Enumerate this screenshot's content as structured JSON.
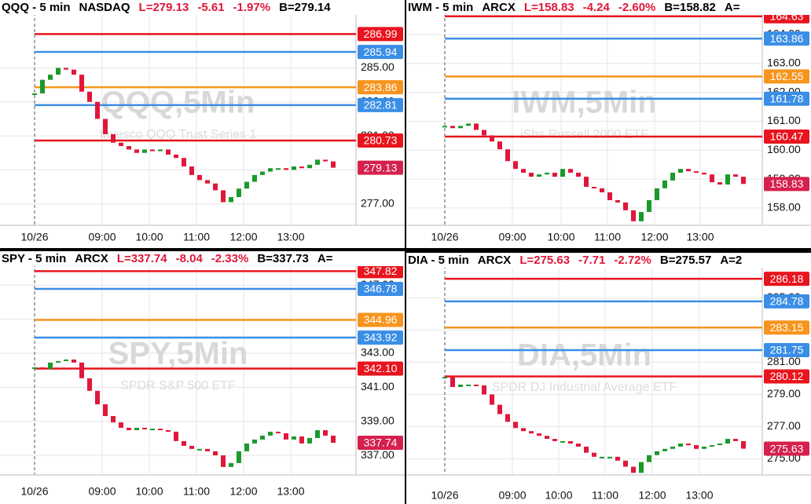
{
  "chart_data": [
    {
      "type": "candlestick",
      "title": "QQQ - 5 min",
      "exchange": "NASDAQ",
      "last": "L=279.13",
      "change": "-5.61",
      "change_pct": "-1.97%",
      "bid": "B=279.14",
      "watermark": "QQQ,5Min",
      "description": "Invesco QQQ Trust Series 1",
      "ylim": [
        275.74,
        288.07
      ],
      "yticks": [
        {
          "value": 277,
          "label": "277.00"
        },
        {
          "value": 279,
          "label": "279.00"
        },
        {
          "value": 281,
          "label": "281.00"
        },
        {
          "value": 283,
          "label": "283.00"
        },
        {
          "value": 285,
          "label": "285.00"
        }
      ],
      "xlim": [
        0,
        40
      ],
      "xticks": [
        {
          "value": 0,
          "label": "10/26"
        },
        {
          "value": 8.6,
          "label": "09:00"
        },
        {
          "value": 14.6,
          "label": "10:00"
        },
        {
          "value": 20.6,
          "label": "11:00"
        },
        {
          "value": 26.6,
          "label": "12:00"
        },
        {
          "value": 32.6,
          "label": "13:00"
        }
      ],
      "levels": [
        {
          "value": 286.99,
          "color": "#e8141e"
        },
        {
          "value": 285.94,
          "color": "#3a8ee6"
        },
        {
          "value": 283.86,
          "color": "#f7941d"
        },
        {
          "value": 282.81,
          "color": "#3a8ee6"
        },
        {
          "value": 280.73,
          "color": "#e8141e"
        }
      ],
      "last_price": 279.13,
      "last_color": "#d6204e",
      "up_color": "#1a9a2a",
      "down_color": "#e0173a",
      "closes": [
        283.5,
        284.3,
        284.6,
        285.0,
        284.9,
        284.6,
        283.6,
        283.0,
        282.0,
        281.1,
        280.6,
        280.4,
        280.2,
        280.0,
        280.2,
        280.1,
        280.2,
        279.9,
        279.7,
        279.2,
        278.7,
        278.4,
        278.2,
        277.8,
        277.1,
        277.4,
        277.9,
        278.3,
        278.7,
        278.9,
        279.1,
        279.1,
        279.0,
        279.2,
        279.1,
        279.3,
        279.6,
        279.5,
        279.13
      ]
    },
    {
      "type": "candlestick",
      "title": "IWM - 5 min",
      "exchange": "ARCX",
      "last": "L=158.83",
      "change": "-4.24",
      "change_pct": "-2.60%",
      "bid": "B=158.82",
      "ask": "A=",
      "watermark": "IWM,5Min",
      "description": "iShs Russell 2000 ETF",
      "ylim": [
        157.4,
        164.65
      ],
      "yticks": [
        {
          "value": 158,
          "label": "158.00"
        },
        {
          "value": 159,
          "label": "159.00"
        },
        {
          "value": 160,
          "label": "160.00"
        },
        {
          "value": 161,
          "label": "161.00"
        },
        {
          "value": 162,
          "label": "162.00"
        },
        {
          "value": 163,
          "label": "163.00"
        },
        {
          "value": 164,
          "label": "164.00"
        }
      ],
      "xlim": [
        0,
        40
      ],
      "xticks": [
        {
          "value": 0,
          "label": "10/26"
        },
        {
          "value": 8.6,
          "label": "09:00"
        },
        {
          "value": 14.8,
          "label": "10:00"
        },
        {
          "value": 20.7,
          "label": "11:00"
        },
        {
          "value": 26.7,
          "label": "12:00"
        },
        {
          "value": 32.5,
          "label": "13:00"
        }
      ],
      "levels": [
        {
          "value": 164.63,
          "color": "#e8141e"
        },
        {
          "value": 163.86,
          "color": "#3a8ee6"
        },
        {
          "value": 162.55,
          "color": "#f7941d"
        },
        {
          "value": 161.78,
          "color": "#3a8ee6"
        },
        {
          "value": 160.47,
          "color": "#e8141e"
        }
      ],
      "last_price": 158.83,
      "last_color": "#d6204e",
      "up_color": "#1a9a2a",
      "down_color": "#e0173a",
      "closes": [
        160.84,
        160.76,
        160.84,
        160.92,
        160.7,
        160.51,
        160.3,
        160.03,
        159.62,
        159.35,
        159.22,
        159.08,
        159.16,
        159.22,
        159.08,
        159.35,
        159.22,
        159.08,
        158.73,
        158.68,
        158.54,
        158.27,
        158.19,
        157.92,
        157.54,
        157.86,
        158.27,
        158.68,
        158.95,
        159.22,
        159.35,
        159.27,
        159.22,
        159.16,
        158.89,
        158.81,
        159.16,
        159.08,
        158.83
      ]
    },
    {
      "type": "candlestick",
      "title": "SPY - 5 min",
      "exchange": "ARCX",
      "last": "L=337.74",
      "change": "-8.04",
      "change_pct": "-2.33%",
      "bid": "B=337.73",
      "ask": "A=",
      "watermark": "SPY,5Min",
      "description": "SPDR S&P 500 ETF",
      "ylim": [
        335.85,
        348.07
      ],
      "yticks": [
        {
          "value": 337,
          "label": "337.00"
        },
        {
          "value": 339,
          "label": "339.00"
        },
        {
          "value": 341,
          "label": "341.00"
        },
        {
          "value": 343,
          "label": "343.00"
        },
        {
          "value": 345,
          "label": "345.00"
        },
        {
          "value": 347,
          "label": "347.00"
        }
      ],
      "xlim": [
        0,
        40
      ],
      "xticks": [
        {
          "value": 0,
          "label": "10/26"
        },
        {
          "value": 8.6,
          "label": "09:00"
        },
        {
          "value": 14.6,
          "label": "10:00"
        },
        {
          "value": 20.6,
          "label": "11:00"
        },
        {
          "value": 26.6,
          "label": "12:00"
        },
        {
          "value": 32.6,
          "label": "13:00"
        }
      ],
      "levels": [
        {
          "value": 347.82,
          "color": "#e8141e"
        },
        {
          "value": 346.78,
          "color": "#3a8ee6"
        },
        {
          "value": 344.96,
          "color": "#f7941d"
        },
        {
          "value": 343.92,
          "color": "#3a8ee6"
        },
        {
          "value": 342.1,
          "label": "342.10",
          "color": "#e8141e"
        }
      ],
      "last_price": 337.74,
      "last_color": "#d6204e",
      "up_color": "#1a9a2a",
      "down_color": "#e0173a",
      "closes": [
        342.17,
        342.08,
        342.45,
        342.54,
        342.63,
        342.45,
        341.53,
        340.79,
        340.0,
        339.31,
        338.94,
        338.62,
        338.48,
        338.62,
        338.57,
        338.57,
        338.48,
        338.39,
        337.84,
        337.56,
        337.38,
        337.38,
        337.24,
        337.0,
        336.32,
        336.55,
        337.24,
        337.7,
        337.93,
        338.16,
        338.39,
        338.3,
        337.93,
        338.11,
        337.7,
        338.02,
        338.48,
        338.16,
        337.74
      ]
    },
    {
      "type": "candlestick",
      "title": "DIA - 5 min",
      "exchange": "ARCX",
      "last": "L=275.63",
      "change": "-7.71",
      "change_pct": "-2.72%",
      "bid": "B=275.57",
      "ask": "A=2",
      "watermark": "DIA,5Min",
      "description": "SPDR DJ Industrial Average ETF",
      "ylim": [
        274.0,
        286.82
      ],
      "yticks": [
        {
          "value": 275,
          "label": "275.00"
        },
        {
          "value": 277,
          "label": "277.00"
        },
        {
          "value": 279,
          "label": "279.00"
        },
        {
          "value": 281,
          "label": "281.00"
        },
        {
          "value": 283,
          "label": "283.00"
        },
        {
          "value": 285,
          "label": "285.00"
        }
      ],
      "xlim": [
        0,
        40
      ],
      "xticks": [
        {
          "value": 0,
          "label": "10/26"
        },
        {
          "value": 8.6,
          "label": "09:00"
        },
        {
          "value": 14.5,
          "label": "10:00"
        },
        {
          "value": 20.4,
          "label": "11:00"
        },
        {
          "value": 26.4,
          "label": "12:00"
        },
        {
          "value": 32.4,
          "label": "13:00"
        }
      ],
      "levels": [
        {
          "value": 286.18,
          "color": "#e8141e"
        },
        {
          "value": 284.78,
          "color": "#3a8ee6"
        },
        {
          "value": 283.15,
          "color": "#f7941d"
        },
        {
          "value": 281.75,
          "color": "#3a8ee6"
        },
        {
          "value": 280.12,
          "color": "#e8141e"
        }
      ],
      "last_price": 275.63,
      "last_color": "#d6204e",
      "up_color": "#1a9a2a",
      "down_color": "#e0173a",
      "closes": [
        280.09,
        279.46,
        279.61,
        279.61,
        279.56,
        279.0,
        278.36,
        277.78,
        277.3,
        276.91,
        276.72,
        276.58,
        276.43,
        276.24,
        276.1,
        276.1,
        275.95,
        275.76,
        275.38,
        275.13,
        275.13,
        275.13,
        274.89,
        274.51,
        274.13,
        274.8,
        275.23,
        275.47,
        275.62,
        275.76,
        275.95,
        275.85,
        275.62,
        275.76,
        275.85,
        275.95,
        276.24,
        276.1,
        275.63
      ]
    }
  ]
}
